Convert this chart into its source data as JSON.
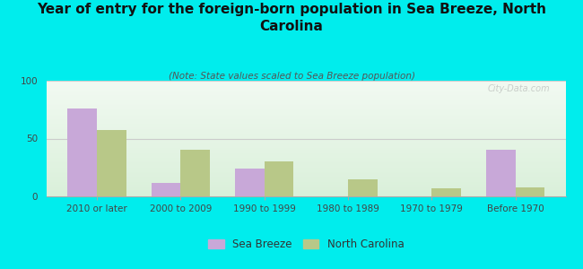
{
  "title": "Year of entry for the foreign-born population in Sea Breeze, North\nCarolina",
  "subtitle": "(Note: State values scaled to Sea Breeze population)",
  "categories": [
    "2010 or later",
    "2000 to 2009",
    "1990 to 1999",
    "1980 to 1989",
    "1970 to 1979",
    "Before 1970"
  ],
  "sea_breeze": [
    76,
    12,
    24,
    0,
    0,
    40
  ],
  "north_carolina": [
    57,
    40,
    30,
    15,
    7,
    8
  ],
  "sea_breeze_color": "#c8a8d8",
  "nc_color": "#b8c888",
  "background_color": "#00eded",
  "ylim": [
    0,
    100
  ],
  "yticks": [
    0,
    50,
    100
  ],
  "legend_labels": [
    "Sea Breeze",
    "North Carolina"
  ],
  "watermark": "City-Data.com",
  "bar_width": 0.35,
  "title_fontsize": 11,
  "subtitle_fontsize": 7.5,
  "tick_fontsize": 7.5,
  "legend_fontsize": 8.5
}
